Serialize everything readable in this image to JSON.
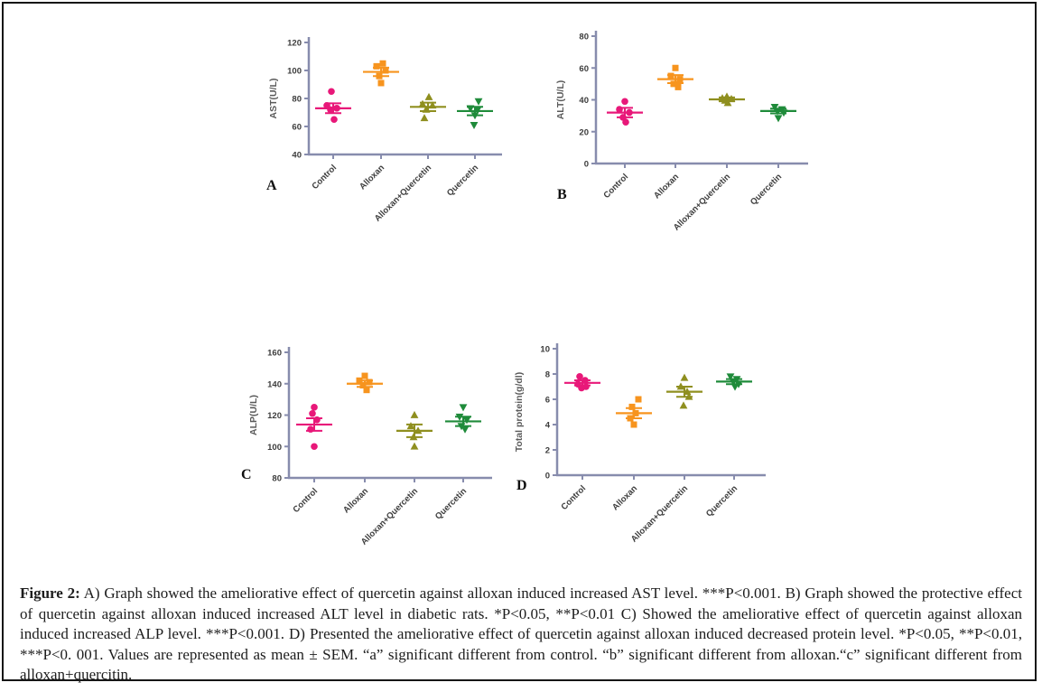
{
  "figure": {
    "caption_prefix": "Figure 2:",
    "caption_body": " A) Graph showed the ameliorative effect of quercetin against alloxan induced increased AST level. ***P<0.001. B) Graph showed the protective effect of quercetin against alloxan induced increased ALT level in diabetic rats. *P<0.05, **P<0.01 C) Showed the ameliorative effect of quercetin against alloxan induced increased ALP level. ***P<0.001. D) Presented the ameliorative effect of quercetin against alloxan induced decreased protein level. *P<0.05, **P<0.01, ***P<0. 001. Values are represented as mean ± SEM. “a” significant different from control. “b” significant different from alloxan.“c” significant different from alloxan+quercitin."
  },
  "colors": {
    "axis": "#878cad",
    "control_pink": "#e81879",
    "alloxan_orange": "#f7941e",
    "alloxan_quercetin_olive": "#8f8f1f",
    "quercetin_green": "#1f8b3a",
    "frame_border": "#161616",
    "tick_text": "#3c3c3c"
  },
  "chart_data": [
    {
      "id": "A",
      "type": "scatter",
      "panel_label": "A",
      "title": "",
      "xlabel": "",
      "ylabel": "AST(U/L)",
      "ylim": [
        40,
        120
      ],
      "yticks": [
        40,
        60,
        80,
        100,
        120
      ],
      "grid": false,
      "legend": "none",
      "categories": [
        "Control",
        "Alloxan",
        "Alloxan+Quercetin",
        "Quercetin"
      ],
      "series": [
        {
          "name": "Control",
          "marker": "circle",
          "color": "#e81879",
          "values": [
            85,
            75,
            73,
            72,
            65
          ],
          "dx": [
            -2,
            -7,
            4,
            -3,
            1
          ],
          "mean": 73,
          "sem": 3.5
        },
        {
          "name": "Alloxan",
          "marker": "square",
          "color": "#f7941e",
          "values": [
            105,
            103,
            100,
            96,
            91
          ],
          "dx": [
            2,
            -5,
            5,
            -2,
            0
          ],
          "mean": 99,
          "sem": 3
        },
        {
          "name": "Alloxan+Quercetin",
          "marker": "triangle-up",
          "color": "#8f8f1f",
          "values": [
            81,
            76,
            75,
            72,
            66
          ],
          "dx": [
            1,
            -6,
            5,
            -2,
            -4
          ],
          "mean": 74,
          "sem": 3
        },
        {
          "name": "Quercetin",
          "marker": "triangle-down",
          "color": "#1f8b3a",
          "values": [
            78,
            73,
            72,
            68,
            61
          ],
          "dx": [
            4,
            -5,
            3,
            0,
            -1
          ],
          "mean": 71,
          "sem": 3
        }
      ]
    },
    {
      "id": "B",
      "type": "scatter",
      "panel_label": "B",
      "title": "",
      "xlabel": "",
      "ylabel": "ALT(U/L)",
      "ylim": [
        0,
        80
      ],
      "yticks": [
        0,
        20,
        40,
        60,
        80
      ],
      "grid": false,
      "legend": "none",
      "categories": [
        "Control",
        "Alloxan",
        "Alloxan+Quercetin",
        "Quercetin"
      ],
      "series": [
        {
          "name": "Control",
          "marker": "circle",
          "color": "#e81879",
          "values": [
            39,
            34,
            32,
            29,
            26
          ],
          "dx": [
            0,
            -6,
            5,
            -2,
            1
          ],
          "mean": 32,
          "sem": 3
        },
        {
          "name": "Alloxan",
          "marker": "square",
          "color": "#f7941e",
          "values": [
            60,
            55,
            53,
            50,
            48
          ],
          "dx": [
            0,
            -5,
            5,
            -2,
            3
          ],
          "mean": 53,
          "sem": 2.5
        },
        {
          "name": "Alloxan+Quercetin",
          "marker": "triangle-up",
          "color": "#8f8f1f",
          "values": [
            42,
            41,
            40.5,
            39.5,
            38
          ],
          "dx": [
            0,
            -5,
            5,
            -2,
            1
          ],
          "mean": 40.3,
          "sem": 1.2
        },
        {
          "name": "Quercetin",
          "marker": "triangle-down",
          "color": "#1f8b3a",
          "values": [
            35.5,
            34,
            33,
            32,
            28.5
          ],
          "dx": [
            -4,
            4,
            -1,
            6,
            0
          ],
          "mean": 33,
          "sem": 1.5
        }
      ]
    },
    {
      "id": "C",
      "type": "scatter",
      "panel_label": "C",
      "title": "",
      "xlabel": "",
      "ylabel": "ALP(U/L)",
      "ylim": [
        80,
        160
      ],
      "yticks": [
        80,
        100,
        120,
        140,
        160
      ],
      "grid": false,
      "legend": "none",
      "categories": [
        "Control",
        "Alloxan",
        "Alloxan+Quercetin",
        "Quercetin"
      ],
      "series": [
        {
          "name": "Control",
          "marker": "circle",
          "color": "#e81879",
          "values": [
            125,
            121,
            117,
            111,
            100
          ],
          "dx": [
            0,
            -2,
            3,
            -4,
            0
          ],
          "mean": 114,
          "sem": 4
        },
        {
          "name": "Alloxan",
          "marker": "square",
          "color": "#f7941e",
          "values": [
            145,
            142,
            141,
            139,
            136
          ],
          "dx": [
            0,
            -6,
            5,
            -2,
            2
          ],
          "mean": 140,
          "sem": 2
        },
        {
          "name": "Alloxan+Quercetin",
          "marker": "triangle-up",
          "color": "#8f8f1f",
          "values": [
            120,
            113,
            110,
            106,
            100
          ],
          "dx": [
            0,
            -4,
            4,
            -1,
            0
          ],
          "mean": 110,
          "sem": 4
        },
        {
          "name": "Quercetin",
          "marker": "triangle-down",
          "color": "#1f8b3a",
          "values": [
            125,
            119,
            117,
            113,
            111
          ],
          "dx": [
            0,
            -4,
            4,
            -2,
            2
          ],
          "mean": 116,
          "sem": 3
        }
      ]
    },
    {
      "id": "D",
      "type": "scatter",
      "panel_label": "D",
      "title": "",
      "xlabel": "",
      "ylabel": "Total protein(g/dl)",
      "ylim": [
        0,
        10
      ],
      "yticks": [
        0,
        2,
        4,
        6,
        8,
        10
      ],
      "grid": false,
      "legend": "none",
      "categories": [
        "Control",
        "Alloxan",
        "Alloxan+Quercetin",
        "Quercetin"
      ],
      "series": [
        {
          "name": "Control",
          "marker": "circle",
          "color": "#e81879",
          "values": [
            7.8,
            7.5,
            7.2,
            7.0,
            6.9
          ],
          "dx": [
            -3,
            3,
            -5,
            4,
            -1
          ],
          "mean": 7.3,
          "sem": 0.2
        },
        {
          "name": "Alloxan",
          "marker": "square",
          "color": "#f7941e",
          "values": [
            6.0,
            5.4,
            4.9,
            4.5,
            4.0
          ],
          "dx": [
            5,
            -2,
            2,
            -4,
            0
          ],
          "mean": 4.9,
          "sem": 0.4
        },
        {
          "name": "Alloxan+Quercetin",
          "marker": "triangle-up",
          "color": "#8f8f1f",
          "values": [
            7.7,
            7.0,
            6.6,
            6.2,
            5.5
          ],
          "dx": [
            0,
            -4,
            3,
            5,
            -1
          ],
          "mean": 6.6,
          "sem": 0.4
        },
        {
          "name": "Quercetin",
          "marker": "triangle-down",
          "color": "#1f8b3a",
          "values": [
            7.8,
            7.6,
            7.4,
            7.2,
            7.0
          ],
          "dx": [
            -4,
            3,
            -1,
            5,
            1
          ],
          "mean": 7.4,
          "sem": 0.2
        }
      ]
    }
  ]
}
